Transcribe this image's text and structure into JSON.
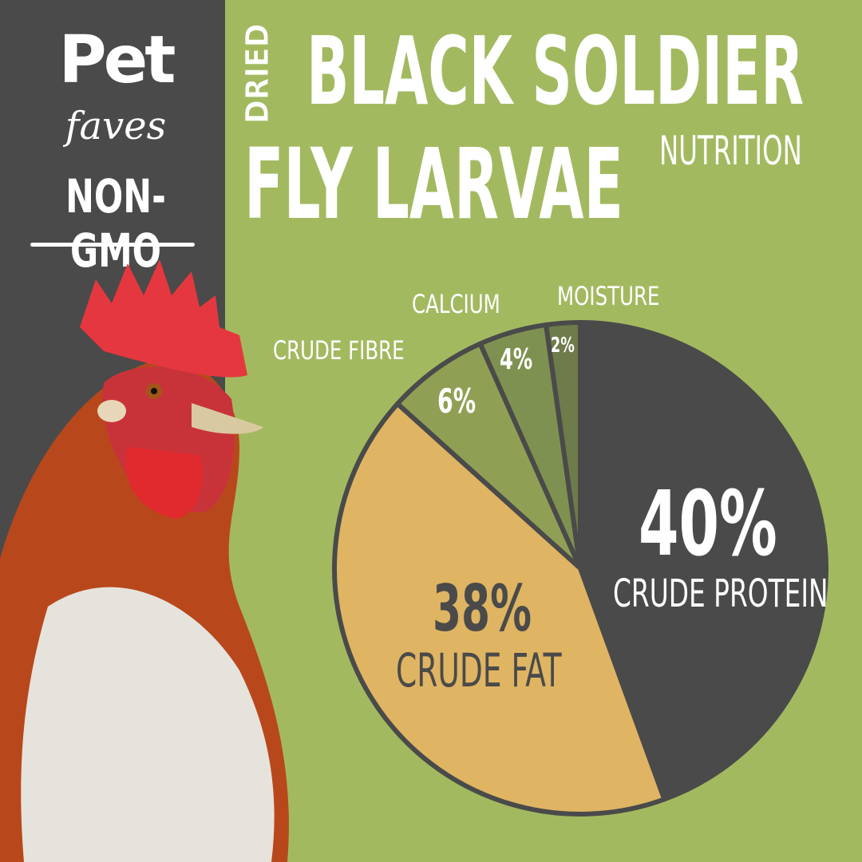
{
  "brand": {
    "name_top": "Pet",
    "name_bottom": "faves",
    "badge": "NON-GMO"
  },
  "title": {
    "prefix": "DRIED",
    "line1": "BLACK SOLDIER",
    "line2": "FLY LARVAE",
    "suffix": "NUTRITION"
  },
  "colors": {
    "background": "#a3b960",
    "sidebar": "#4a4a4a",
    "protein": "#4a4a4a",
    "fat": "#dfb463",
    "fibre": "#8fa055",
    "calcium": "#7f9150",
    "moisture": "#6e7b4a"
  },
  "chart_data": {
    "type": "pie",
    "start": "top",
    "direction": "clockwise",
    "slices": [
      {
        "label": "CRUDE PROTEIN",
        "value": 40,
        "display": "40%",
        "color": "#4a4a4a"
      },
      {
        "label": "CRUDE FAT",
        "value": 38,
        "display": "38%",
        "color": "#dfb463"
      },
      {
        "label": "CRUDE FIBRE",
        "value": 6,
        "display": "6%",
        "color": "#8fa055"
      },
      {
        "label": "CALCIUM",
        "value": 4,
        "display": "4%",
        "color": "#7f9150"
      },
      {
        "label": "MOISTURE",
        "value": 2,
        "display": "2%",
        "color": "#6e7b4a"
      }
    ]
  }
}
